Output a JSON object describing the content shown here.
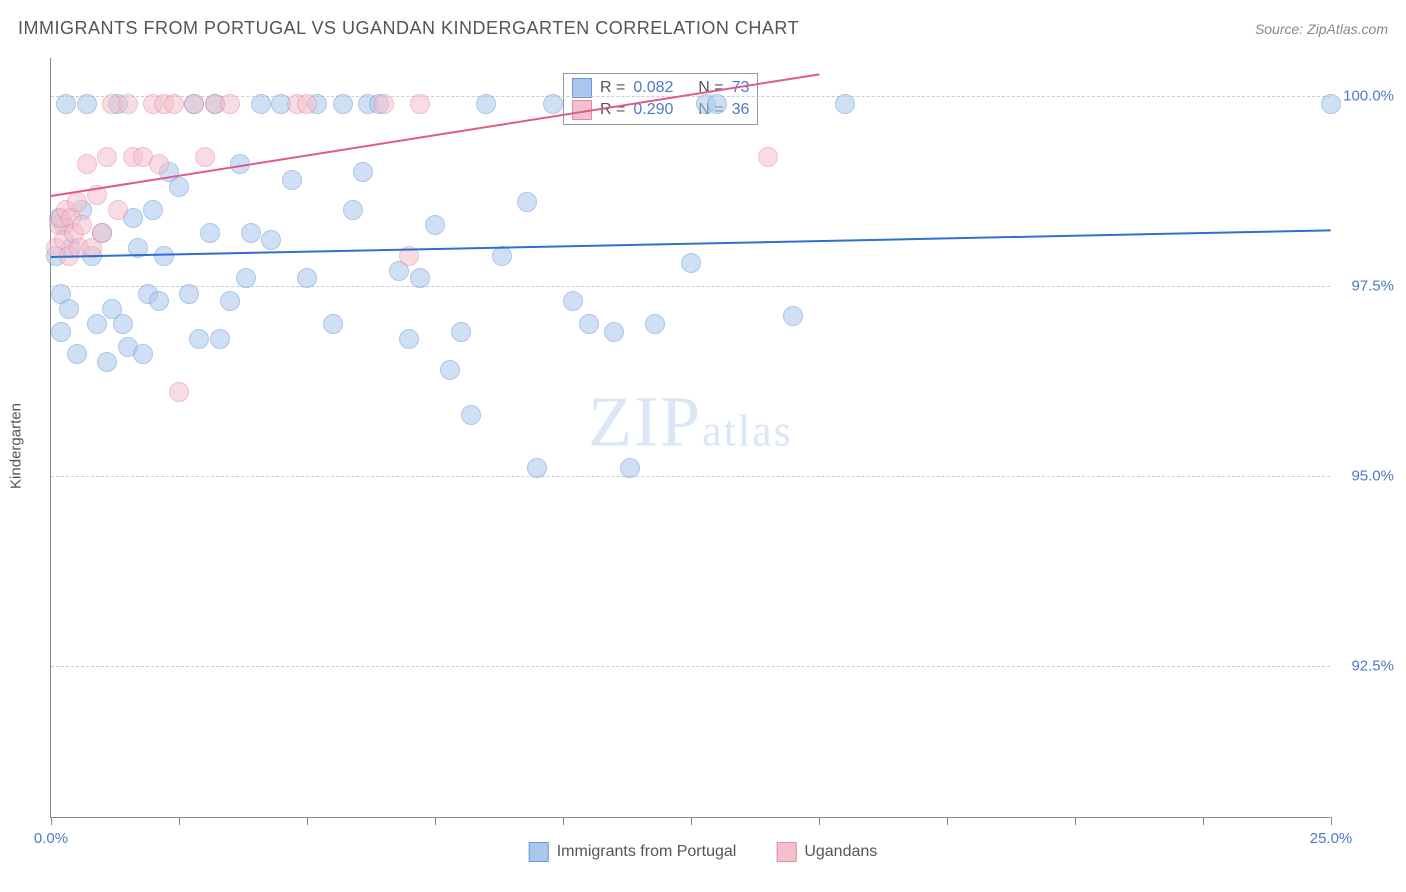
{
  "title": "IMMIGRANTS FROM PORTUGAL VS UGANDAN KINDERGARTEN CORRELATION CHART",
  "source": "Source: ZipAtlas.com",
  "watermark_big": "ZIP",
  "watermark_small": "atlas",
  "chart": {
    "type": "scatter",
    "xlim": [
      0,
      25
    ],
    "ylim": [
      90.5,
      100.5
    ],
    "background_color": "#ffffff",
    "grid_color": "#cccccc",
    "axis_color": "#888888",
    "tick_label_color": "#4a7bc8",
    "ytick_values": [
      92.5,
      95.0,
      97.5,
      100.0
    ],
    "ytick_labels": [
      "92.5%",
      "95.0%",
      "97.5%",
      "100.0%"
    ],
    "xtick_positions": [
      0,
      2.5,
      5.0,
      7.5,
      10.0,
      12.5,
      15.0,
      17.5,
      20.0,
      22.5,
      25.0
    ],
    "xtick_labels": {
      "0": "0.0%",
      "25": "25.0%"
    },
    "ylabel": "Kindergarten",
    "marker_radius": 10,
    "marker_opacity": 0.55,
    "series": [
      {
        "name": "Immigrants from Portugal",
        "color_fill": "#a9c7ed",
        "color_stroke": "#6a9bd8",
        "R": "0.082",
        "N": "73",
        "trend": {
          "x1": 0,
          "y1": 97.9,
          "x2": 25,
          "y2": 98.25,
          "color": "#2f6fd0",
          "width": 2
        },
        "points": [
          [
            0.1,
            97.9
          ],
          [
            0.15,
            98.4
          ],
          [
            0.2,
            96.9
          ],
          [
            0.2,
            97.4
          ],
          [
            0.25,
            98.3
          ],
          [
            0.3,
            99.9
          ],
          [
            0.35,
            97.2
          ],
          [
            0.4,
            98.0
          ],
          [
            0.5,
            96.6
          ],
          [
            0.6,
            98.5
          ],
          [
            0.7,
            99.9
          ],
          [
            0.8,
            97.9
          ],
          [
            0.9,
            97.0
          ],
          [
            1.0,
            98.2
          ],
          [
            1.1,
            96.5
          ],
          [
            1.2,
            97.2
          ],
          [
            1.3,
            99.9
          ],
          [
            1.4,
            97.0
          ],
          [
            1.5,
            96.7
          ],
          [
            1.6,
            98.4
          ],
          [
            1.7,
            98.0
          ],
          [
            1.8,
            96.6
          ],
          [
            1.9,
            97.4
          ],
          [
            2.0,
            98.5
          ],
          [
            2.1,
            97.3
          ],
          [
            2.2,
            97.9
          ],
          [
            2.3,
            99.0
          ],
          [
            2.5,
            98.8
          ],
          [
            2.7,
            97.4
          ],
          [
            2.8,
            99.9
          ],
          [
            2.9,
            96.8
          ],
          [
            3.1,
            98.2
          ],
          [
            3.2,
            99.9
          ],
          [
            3.3,
            96.8
          ],
          [
            3.5,
            97.3
          ],
          [
            3.7,
            99.1
          ],
          [
            3.8,
            97.6
          ],
          [
            3.9,
            98.2
          ],
          [
            4.1,
            99.9
          ],
          [
            4.3,
            98.1
          ],
          [
            4.5,
            99.9
          ],
          [
            4.7,
            98.9
          ],
          [
            5.0,
            97.6
          ],
          [
            5.2,
            99.9
          ],
          [
            5.5,
            97.0
          ],
          [
            5.7,
            99.9
          ],
          [
            5.9,
            98.5
          ],
          [
            6.1,
            99.0
          ],
          [
            6.2,
            99.9
          ],
          [
            6.4,
            99.9
          ],
          [
            6.8,
            97.7
          ],
          [
            7.0,
            96.8
          ],
          [
            7.2,
            97.6
          ],
          [
            7.5,
            98.3
          ],
          [
            7.8,
            96.4
          ],
          [
            8.0,
            96.9
          ],
          [
            8.2,
            95.8
          ],
          [
            8.5,
            99.9
          ],
          [
            8.8,
            97.9
          ],
          [
            9.3,
            98.6
          ],
          [
            9.5,
            95.1
          ],
          [
            9.8,
            99.9
          ],
          [
            10.2,
            97.3
          ],
          [
            10.5,
            97.0
          ],
          [
            11.0,
            96.9
          ],
          [
            11.3,
            95.1
          ],
          [
            11.8,
            97.0
          ],
          [
            12.5,
            97.8
          ],
          [
            12.8,
            99.9
          ],
          [
            13.0,
            99.9
          ],
          [
            14.5,
            97.1
          ],
          [
            15.5,
            99.9
          ],
          [
            25.0,
            99.9
          ]
        ]
      },
      {
        "name": "Ugandans",
        "color_fill": "#f5c0cd",
        "color_stroke": "#e789a3",
        "R": "0.290",
        "N": "36",
        "trend": {
          "x1": 0,
          "y1": 98.7,
          "x2": 15,
          "y2": 100.3,
          "color": "#e05a88",
          "width": 2
        },
        "points": [
          [
            0.1,
            98.0
          ],
          [
            0.15,
            98.3
          ],
          [
            0.2,
            98.4
          ],
          [
            0.25,
            98.1
          ],
          [
            0.3,
            98.5
          ],
          [
            0.35,
            97.9
          ],
          [
            0.4,
            98.4
          ],
          [
            0.45,
            98.2
          ],
          [
            0.5,
            98.6
          ],
          [
            0.55,
            98.0
          ],
          [
            0.6,
            98.3
          ],
          [
            0.7,
            99.1
          ],
          [
            0.8,
            98.0
          ],
          [
            0.9,
            98.7
          ],
          [
            1.0,
            98.2
          ],
          [
            1.1,
            99.2
          ],
          [
            1.2,
            99.9
          ],
          [
            1.3,
            98.5
          ],
          [
            1.5,
            99.9
          ],
          [
            1.6,
            99.2
          ],
          [
            1.8,
            99.2
          ],
          [
            2.0,
            99.9
          ],
          [
            2.1,
            99.1
          ],
          [
            2.2,
            99.9
          ],
          [
            2.4,
            99.9
          ],
          [
            2.5,
            96.1
          ],
          [
            2.8,
            99.9
          ],
          [
            3.0,
            99.2
          ],
          [
            3.2,
            99.9
          ],
          [
            3.5,
            99.9
          ],
          [
            4.8,
            99.9
          ],
          [
            5.0,
            99.9
          ],
          [
            6.5,
            99.9
          ],
          [
            7.0,
            97.9
          ],
          [
            7.2,
            99.9
          ],
          [
            14.0,
            99.2
          ]
        ]
      }
    ]
  },
  "legend": {
    "series1_label": "Immigrants from Portugal",
    "series2_label": "Ugandans"
  },
  "stats_labels": {
    "R": "R =",
    "N": "N ="
  }
}
